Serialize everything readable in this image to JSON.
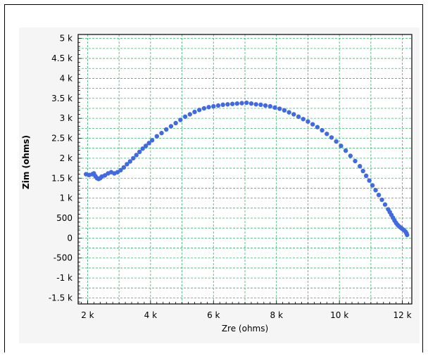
{
  "chart_data": {
    "type": "scatter",
    "title": "",
    "xlabel": "Zre (ohms)",
    "ylabel": "Zim (ohms)",
    "xlim": [
      1700,
      12300
    ],
    "ylim": [
      -1650,
      5100
    ],
    "x_ticks": [
      {
        "value": 2000,
        "label": "2 k"
      },
      {
        "value": 4000,
        "label": "4 k"
      },
      {
        "value": 6000,
        "label": "6 k"
      },
      {
        "value": 8000,
        "label": "8 k"
      },
      {
        "value": 10000,
        "label": "10 k"
      },
      {
        "value": 12000,
        "label": "12 k"
      }
    ],
    "y_ticks": [
      {
        "value": 5000,
        "label": "5 k"
      },
      {
        "value": 4500,
        "label": "4.5 k"
      },
      {
        "value": 4000,
        "label": "4 k"
      },
      {
        "value": 3500,
        "label": "3.5 k"
      },
      {
        "value": 3000,
        "label": "3 k"
      },
      {
        "value": 2500,
        "label": "2.5 k"
      },
      {
        "value": 2000,
        "label": "2 k"
      },
      {
        "value": 1500,
        "label": "1.5 k"
      },
      {
        "value": 1000,
        "label": "1 k"
      },
      {
        "value": 500,
        "label": "500"
      },
      {
        "value": 0,
        "label": "0"
      },
      {
        "value": -500,
        "label": "-500"
      },
      {
        "value": -1000,
        "label": "-1 k"
      },
      {
        "value": -1500,
        "label": "-1.5 k"
      }
    ],
    "grid": true,
    "colors": {
      "marker": "#4169e1",
      "grid": "#3cb371",
      "plot_background": "#ffffff",
      "panel_background": "#f5f5f5"
    },
    "series": [
      {
        "points": [
          [
            1950,
            1600
          ],
          [
            2050,
            1580
          ],
          [
            2150,
            1600
          ],
          [
            2200,
            1620
          ],
          [
            2250,
            1550
          ],
          [
            2300,
            1500
          ],
          [
            2350,
            1480
          ],
          [
            2400,
            1500
          ],
          [
            2450,
            1540
          ],
          [
            2550,
            1570
          ],
          [
            2650,
            1620
          ],
          [
            2750,
            1650
          ],
          [
            2850,
            1620
          ],
          [
            2950,
            1650
          ],
          [
            3050,
            1700
          ],
          [
            3150,
            1770
          ],
          [
            3250,
            1850
          ],
          [
            3350,
            1920
          ],
          [
            3450,
            2000
          ],
          [
            3550,
            2080
          ],
          [
            3650,
            2160
          ],
          [
            3750,
            2240
          ],
          [
            3850,
            2310
          ],
          [
            3950,
            2380
          ],
          [
            4050,
            2450
          ],
          [
            4200,
            2550
          ],
          [
            4350,
            2630
          ],
          [
            4500,
            2720
          ],
          [
            4650,
            2800
          ],
          [
            4800,
            2880
          ],
          [
            4950,
            2960
          ],
          [
            5100,
            3040
          ],
          [
            5250,
            3100
          ],
          [
            5400,
            3160
          ],
          [
            5550,
            3210
          ],
          [
            5700,
            3250
          ],
          [
            5850,
            3280
          ],
          [
            6000,
            3300
          ],
          [
            6150,
            3320
          ],
          [
            6300,
            3340
          ],
          [
            6450,
            3350
          ],
          [
            6600,
            3360
          ],
          [
            6750,
            3370
          ],
          [
            6900,
            3380
          ],
          [
            7050,
            3390
          ],
          [
            7200,
            3370
          ],
          [
            7350,
            3350
          ],
          [
            7500,
            3340
          ],
          [
            7650,
            3320
          ],
          [
            7800,
            3300
          ],
          [
            7950,
            3270
          ],
          [
            8100,
            3240
          ],
          [
            8250,
            3200
          ],
          [
            8400,
            3150
          ],
          [
            8550,
            3100
          ],
          [
            8700,
            3040
          ],
          [
            8850,
            2980
          ],
          [
            9000,
            2920
          ],
          [
            9150,
            2850
          ],
          [
            9300,
            2780
          ],
          [
            9450,
            2700
          ],
          [
            9600,
            2610
          ],
          [
            9750,
            2520
          ],
          [
            9900,
            2420
          ],
          [
            10050,
            2310
          ],
          [
            10200,
            2190
          ],
          [
            10350,
            2060
          ],
          [
            10500,
            1930
          ],
          [
            10650,
            1800
          ],
          [
            10750,
            1680
          ],
          [
            10850,
            1560
          ],
          [
            10950,
            1440
          ],
          [
            11050,
            1320
          ],
          [
            11150,
            1200
          ],
          [
            11250,
            1080
          ],
          [
            11350,
            960
          ],
          [
            11450,
            840
          ],
          [
            11550,
            720
          ],
          [
            11600,
            650
          ],
          [
            11650,
            580
          ],
          [
            11700,
            510
          ],
          [
            11750,
            440
          ],
          [
            11800,
            380
          ],
          [
            11850,
            330
          ],
          [
            11900,
            290
          ],
          [
            11950,
            260
          ],
          [
            12000,
            230
          ],
          [
            12050,
            200
          ],
          [
            12100,
            160
          ],
          [
            12130,
            120
          ],
          [
            12150,
            80
          ]
        ]
      }
    ]
  }
}
